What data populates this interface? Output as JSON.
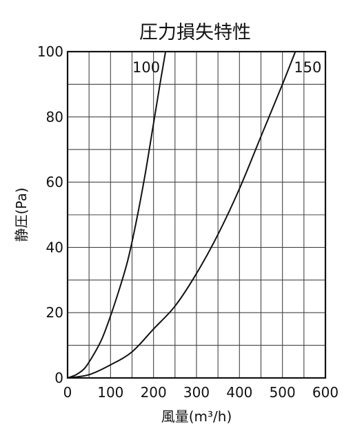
{
  "chart_data": {
    "type": "line",
    "title": "圧力損失特性",
    "xlabel": "風量(m³/h)",
    "ylabel": "静圧(Pa)",
    "xlim": [
      0,
      600
    ],
    "ylim": [
      0,
      100
    ],
    "xticks": [
      0,
      100,
      200,
      300,
      400,
      500,
      600
    ],
    "yticks": [
      0,
      20,
      40,
      60,
      80,
      100
    ],
    "grid": true,
    "series": [
      {
        "name": "100",
        "x": [
          0,
          20,
          40,
          60,
          80,
          100,
          120,
          140,
          160,
          180,
          200,
          215,
          228
        ],
        "y": [
          0,
          1,
          3,
          7,
          12,
          19,
          27,
          36,
          48,
          62,
          78,
          90,
          100
        ]
      },
      {
        "name": "150",
        "x": [
          0,
          50,
          100,
          150,
          200,
          250,
          300,
          350,
          400,
          450,
          500,
          530
        ],
        "y": [
          0,
          1,
          4,
          8,
          15,
          22,
          32,
          44,
          58,
          74,
          90,
          100
        ]
      }
    ]
  }
}
